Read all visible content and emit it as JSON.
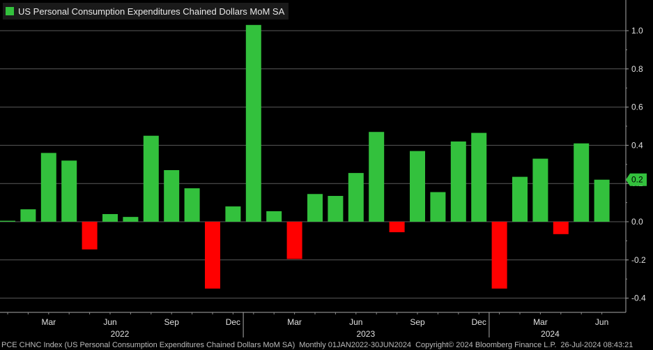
{
  "chart_data": {
    "type": "bar",
    "title": "US Personal Consumption Expenditures Chained Dollars MoM SA",
    "xlabel": "",
    "ylabel": "",
    "ylim": [
      -0.45,
      1.1
    ],
    "yticks": [
      1.0,
      0.8,
      0.6,
      0.4,
      0.2,
      0.0,
      -0.2,
      -0.4
    ],
    "ytick_labels": [
      "1.0",
      "0.8",
      "0.6",
      "0.4",
      "0.2",
      "0.0",
      "-0.2",
      "-0.4"
    ],
    "categories": [
      "Jan 2022",
      "Feb 2022",
      "Mar 2022",
      "Apr 2022",
      "May 2022",
      "Jun 2022",
      "Jul 2022",
      "Aug 2022",
      "Sep 2022",
      "Oct 2022",
      "Nov 2022",
      "Dec 2022",
      "Jan 2023",
      "Feb 2023",
      "Mar 2023",
      "Apr 2023",
      "May 2023",
      "Jun 2023",
      "Jul 2023",
      "Aug 2023",
      "Sep 2023",
      "Oct 2023",
      "Nov 2023",
      "Dec 2023",
      "Jan 2024",
      "Feb 2024",
      "Mar 2024",
      "Apr 2024",
      "May 2024",
      "Jun 2024"
    ],
    "values": [
      0.005,
      0.065,
      0.36,
      0.32,
      -0.145,
      0.04,
      0.025,
      0.45,
      0.27,
      0.175,
      -0.35,
      0.08,
      1.03,
      0.055,
      -0.195,
      0.145,
      0.135,
      0.255,
      0.47,
      -0.055,
      0.37,
      0.155,
      0.42,
      0.465,
      -0.35,
      0.235,
      0.33,
      -0.065,
      0.41,
      0.22
    ],
    "positive_color": "#33c13d",
    "negative_color": "#ff0000",
    "month_ticks": [
      {
        "index": 2,
        "label": "Mar"
      },
      {
        "index": 5,
        "label": "Jun"
      },
      {
        "index": 8,
        "label": "Sep"
      },
      {
        "index": 11,
        "label": "Dec"
      },
      {
        "index": 14,
        "label": "Mar"
      },
      {
        "index": 17,
        "label": "Jun"
      },
      {
        "index": 20,
        "label": "Sep"
      },
      {
        "index": 23,
        "label": "Dec"
      },
      {
        "index": 26,
        "label": "Mar"
      },
      {
        "index": 29,
        "label": "Jun"
      }
    ],
    "year_labels": [
      {
        "center_index": 5,
        "label": "2022"
      },
      {
        "center_index": 17,
        "label": "2023"
      },
      {
        "center_index": 26,
        "label": "2024"
      }
    ],
    "last_value_label": "0.2"
  },
  "legend": {
    "label": "US Personal Consumption Expenditures Chained Dollars MoM SA",
    "color": "#33c13d"
  },
  "footer": {
    "ticker": "PCE CHNC Index (US Personal Consumption Expenditures Chained Dollars MoM SA)",
    "period": "Monthly 01JAN2022-30JUN2024",
    "copyright": "Copyright© 2024 Bloomberg Finance L.P.",
    "timestamp": "26-Jul-2024 08:43:21"
  }
}
